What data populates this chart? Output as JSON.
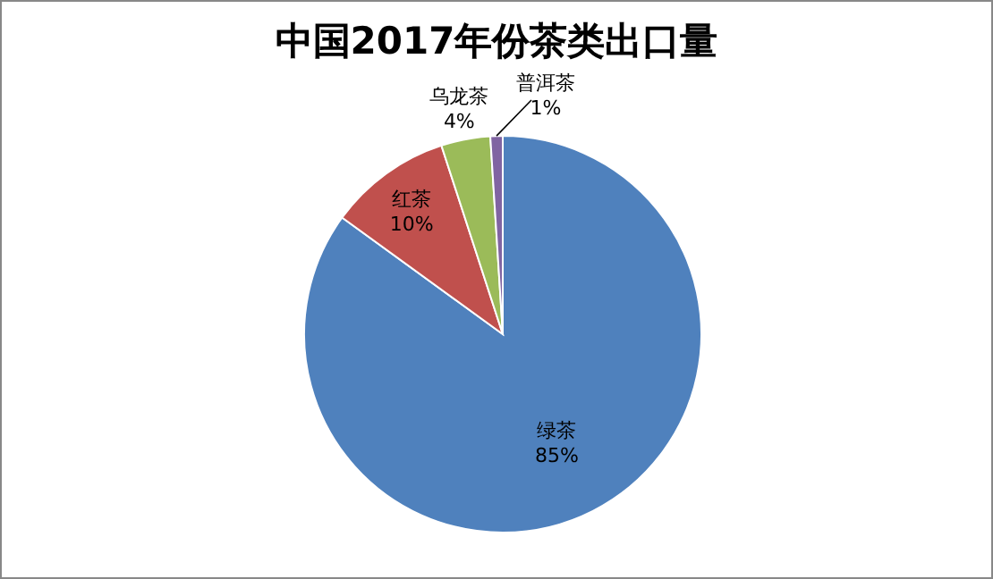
{
  "chart_data": {
    "type": "pie",
    "title": "中国2017年份茶类出口量",
    "categories": [
      "绿茶",
      "红茶",
      "乌龙茶",
      "普洱茶"
    ],
    "values": [
      85,
      10,
      4,
      1
    ],
    "value_labels": [
      "85%",
      "10%",
      "4%",
      "1%"
    ],
    "colors": [
      "#4f81bd",
      "#c0504d",
      "#9bbb59",
      "#8064a2"
    ],
    "legend": false
  }
}
